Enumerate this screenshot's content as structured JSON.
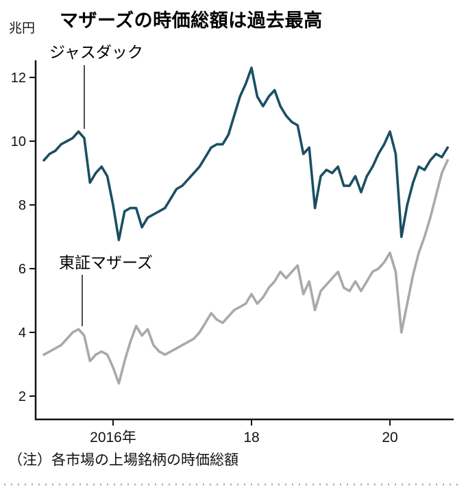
{
  "title": "マザーズの時価総額は過去最高",
  "unit_label": "兆円",
  "note": "（注）各市場の上場銘柄の時価総額",
  "annotations": [
    {
      "label": "ジャスダック"
    },
    {
      "label": "東証マザーズ"
    }
  ],
  "colors": {
    "jasdaq_line": "#1b4f63",
    "mothers_line": "#a9a9ad",
    "axis": "#111111",
    "perforation": "#b5b0ab"
  },
  "chart_data": {
    "type": "line",
    "title": "マザーズの時価総額は過去最高",
    "ylabel": "兆円",
    "xlabel": "",
    "ylim": [
      1.3,
      12.6
    ],
    "xlim": [
      2015.0,
      2020.92
    ],
    "grid": false,
    "legend": "inline-annotations",
    "x_start": 2015.0,
    "x_step": 0.083333,
    "y_ticks": [
      {
        "v": 2,
        "label": "2"
      },
      {
        "v": 4,
        "label": "4"
      },
      {
        "v": 6,
        "label": "6"
      },
      {
        "v": 8,
        "label": "8"
      },
      {
        "v": 10,
        "label": "10"
      },
      {
        "v": 12,
        "label": "12"
      }
    ],
    "x_ticks": [
      {
        "v": 2016,
        "label": "2016年"
      },
      {
        "v": 2018,
        "label": "18"
      },
      {
        "v": 2020,
        "label": "20"
      }
    ],
    "series": [
      {
        "name": "ジャスダック",
        "color": "#1b4f63",
        "values": [
          9.4,
          9.6,
          9.7,
          9.9,
          10.0,
          10.1,
          10.3,
          10.1,
          8.7,
          9.0,
          9.2,
          8.9,
          8.0,
          6.9,
          7.8,
          7.9,
          7.9,
          7.3,
          7.6,
          7.7,
          7.8,
          7.9,
          8.2,
          8.5,
          8.6,
          8.8,
          9.0,
          9.2,
          9.5,
          9.8,
          9.9,
          9.9,
          10.2,
          10.8,
          11.4,
          11.8,
          12.3,
          11.4,
          11.1,
          11.4,
          11.6,
          11.1,
          10.8,
          10.6,
          10.5,
          9.6,
          9.8,
          7.9,
          8.9,
          9.1,
          9.0,
          9.2,
          8.6,
          8.6,
          8.9,
          8.4,
          8.9,
          9.2,
          9.6,
          9.9,
          10.3,
          9.6,
          7.0,
          8.0,
          8.7,
          9.2,
          9.1,
          9.4,
          9.6,
          9.5,
          9.8
        ]
      },
      {
        "name": "東証マザーズ",
        "color": "#a9a9ad",
        "values": [
          3.3,
          3.4,
          3.5,
          3.6,
          3.8,
          4.0,
          4.1,
          3.9,
          3.1,
          3.3,
          3.4,
          3.3,
          2.9,
          2.4,
          3.1,
          3.7,
          4.2,
          3.9,
          4.1,
          3.6,
          3.4,
          3.3,
          3.4,
          3.5,
          3.6,
          3.7,
          3.8,
          4.0,
          4.3,
          4.6,
          4.4,
          4.3,
          4.5,
          4.7,
          4.8,
          4.9,
          5.2,
          4.9,
          5.1,
          5.4,
          5.6,
          5.9,
          5.7,
          5.9,
          6.1,
          5.2,
          5.6,
          4.7,
          5.3,
          5.5,
          5.7,
          5.9,
          5.4,
          5.3,
          5.6,
          5.3,
          5.6,
          5.9,
          6.0,
          6.2,
          6.5,
          5.9,
          4.0,
          4.9,
          5.8,
          6.5,
          7.0,
          7.6,
          8.3,
          9.0,
          9.4
        ]
      }
    ]
  }
}
